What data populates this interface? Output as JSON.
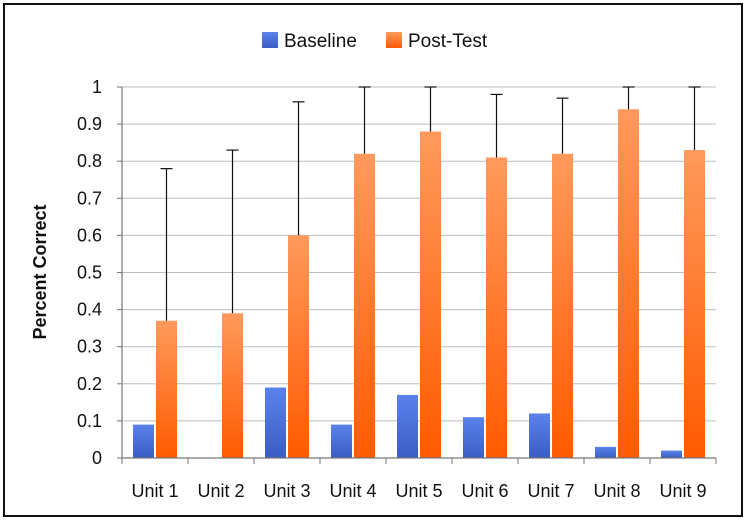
{
  "chart_data": {
    "type": "bar",
    "title": "",
    "xlabel": "",
    "ylabel": "Percent Correct",
    "ylim": [
      0,
      1
    ],
    "yticks": [
      0,
      0.1,
      0.2,
      0.3,
      0.4,
      0.5,
      0.6,
      0.7,
      0.8,
      0.9,
      1
    ],
    "ytick_labels": [
      "0",
      "0.1",
      "0.2",
      "0.3",
      "0.4",
      "0.5",
      "0.6",
      "0.7",
      "0.8",
      "0.9",
      "1"
    ],
    "categories": [
      "Unit 1",
      "Unit 2",
      "Unit 3",
      "Unit 4",
      "Unit 5",
      "Unit 6",
      "Unit 7",
      "Unit 8",
      "Unit 9"
    ],
    "series": [
      {
        "name": "Baseline",
        "color": "#4a6fd6",
        "values": [
          0.09,
          0.0,
          0.19,
          0.09,
          0.17,
          0.11,
          0.12,
          0.03,
          0.02
        ]
      },
      {
        "name": "Post-Test",
        "color": "#ff6a13",
        "values": [
          0.37,
          0.39,
          0.6,
          0.82,
          0.88,
          0.81,
          0.82,
          0.94,
          0.83
        ],
        "error_upper": [
          0.78,
          0.83,
          0.96,
          1.0,
          1.0,
          0.98,
          0.97,
          1.0,
          1.0
        ]
      }
    ],
    "legend": "top",
    "grid": true
  }
}
